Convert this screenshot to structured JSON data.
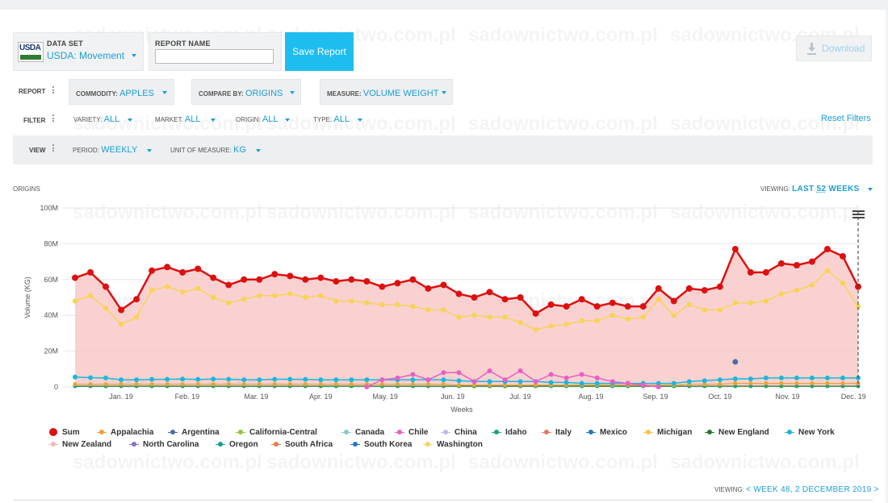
{
  "dataset": {
    "label": "DATA SET",
    "value": "USDA: Movement",
    "logo_text": "USDA"
  },
  "report_name": {
    "label": "REPORT NAME",
    "value": ""
  },
  "save_label": "Save Report",
  "download_label": "Download",
  "report_row": {
    "label": "REPORT",
    "commodity": {
      "label": "COMMODITY:",
      "value": "Apples"
    },
    "compare_by": {
      "label": "COMPARE BY:",
      "value": "Origins"
    },
    "measure": {
      "label": "MEASURE:",
      "value": "Volume Weight"
    }
  },
  "filter_row": {
    "label": "FILTER",
    "variety": {
      "label": "VARIETY:",
      "value": "All"
    },
    "market": {
      "label": "MARKET:",
      "value": "All"
    },
    "origin": {
      "label": "ORIGIN:",
      "value": "All"
    },
    "type": {
      "label": "TYPE:",
      "value": "All"
    },
    "reset_label": "Reset Filters"
  },
  "view_row": {
    "label": "VIEW",
    "period": {
      "label": "PERIOD:",
      "value": "Weekly"
    },
    "unit": {
      "label": "UNIT OF MEASURE:",
      "value": "KG"
    }
  },
  "chart_header": {
    "section_label": "ORIGINS",
    "viewing_label": "VIEWING:",
    "viewing_value_prefix": "LAST",
    "viewing_value_num": "52",
    "viewing_value_suffix": "WEEKS"
  },
  "watermark": "sadownictwo.com.pl",
  "footer": {
    "viewing_label": "VIEWING:",
    "week_value": "< WEEK 48, 2 DECEMBER 2019 >"
  },
  "colors": {
    "accent": "#1a9fd8",
    "save_bg": "#1ebdf0",
    "sum": "#dd1010",
    "sum_fill": "#f9c9c9",
    "washington": "#f7d358"
  },
  "chart_data": {
    "type": "area",
    "xlabel": "Weeks",
    "ylabel": "Volume (KG)",
    "ylim": [
      0,
      100000000
    ],
    "yticks": [
      0,
      20000000,
      40000000,
      60000000,
      80000000,
      100000000
    ],
    "ytick_labels": [
      "0",
      "20M",
      "40M",
      "60M",
      "80M",
      "100M"
    ],
    "xtick_labels": [
      "Jan. 19",
      "Feb. 19",
      "Mar. 19",
      "Apr. 19",
      "May. 19",
      "Jun. 19",
      "Jul. 19",
      "Aug. 19",
      "Sep. 19",
      "Oct. 19",
      "Nov. 19",
      "Dec. 19"
    ],
    "xtick_week_index": [
      3,
      7.3,
      11.8,
      16,
      20.2,
      24.6,
      29,
      33.6,
      37.8,
      42,
      46.4,
      50.7
    ],
    "grid": true,
    "legend_position": "bottom",
    "series": [
      {
        "name": "Sum",
        "color": "#dd1010",
        "values": [
          61,
          64,
          56,
          43,
          49,
          65,
          67,
          64,
          66,
          61,
          57,
          60,
          60,
          63,
          62,
          60,
          61,
          59,
          60,
          59,
          56,
          58,
          60,
          55,
          57,
          52,
          50,
          53,
          49,
          50,
          41,
          46,
          45,
          49,
          45,
          47,
          45,
          45,
          55,
          48,
          55,
          54,
          56,
          77,
          64,
          64,
          69,
          68,
          70,
          77,
          73,
          56
        ]
      },
      {
        "name": "Appalachia",
        "color": "#f0a030",
        "values": [
          1.5,
          1.5,
          1.5,
          1.5,
          1.5,
          1.5,
          1.5,
          1.5,
          1.5,
          1.5,
          1.5,
          1.5,
          1.5,
          1.5,
          1.5,
          1.5,
          1.5,
          1.5,
          1.5,
          1.5,
          1.5,
          1.5,
          1.5,
          1.5,
          1.5,
          1.0,
          1.0,
          1.0,
          1.0,
          1.0,
          1.0,
          1.0,
          1.0,
          1.0,
          1.0,
          1.0,
          1.0,
          1.0,
          1.0,
          1.0,
          1.5,
          1.5,
          1.5,
          2.0,
          2.0,
          2.0,
          2.0,
          2.0,
          2.0,
          2.0,
          2.0,
          2.0
        ]
      },
      {
        "name": "Argentina",
        "color": "#4a6fa5",
        "values": [
          0,
          0,
          0,
          0,
          0,
          0,
          0,
          0,
          0,
          0,
          0,
          0,
          0,
          0,
          0,
          0,
          0,
          0,
          0,
          0,
          0,
          0,
          0,
          0,
          0,
          0,
          0,
          0,
          0,
          0,
          0,
          0,
          0,
          0,
          0,
          0,
          0,
          0,
          0,
          0,
          0,
          0,
          0,
          14,
          0,
          0,
          0,
          0,
          0,
          0,
          0,
          0
        ]
      },
      {
        "name": "California-Central",
        "color": "#8fc740",
        "values": []
      },
      {
        "name": "Canada",
        "color": "#86c8d6",
        "values": []
      },
      {
        "name": "Chile",
        "color": "#e85fc5",
        "values": [
          0,
          0,
          0,
          0,
          0,
          0,
          0,
          0,
          0,
          0,
          0,
          0,
          0,
          0,
          0,
          0,
          0,
          0,
          0,
          0,
          4,
          5,
          7,
          4,
          8,
          8,
          3,
          9,
          4,
          9,
          3,
          7,
          5,
          7,
          5,
          3,
          2,
          1,
          0,
          0,
          0,
          0,
          0,
          0,
          0,
          0,
          0,
          0,
          0,
          0,
          0,
          0
        ]
      },
      {
        "name": "China",
        "color": "#c5b6ec",
        "values": []
      },
      {
        "name": "Idaho",
        "color": "#1aa37a",
        "values": []
      },
      {
        "name": "Italy",
        "color": "#e9765a",
        "values": []
      },
      {
        "name": "Mexico",
        "color": "#1f78c1",
        "values": []
      },
      {
        "name": "Michigan",
        "color": "#f4c542",
        "values": []
      },
      {
        "name": "New England",
        "color": "#1e7a28",
        "values": []
      },
      {
        "name": "New York",
        "color": "#19b8d8",
        "values": [
          5.5,
          5.2,
          5,
          4,
          4,
          4.2,
          4.3,
          4.4,
          4.2,
          4.4,
          4.3,
          4,
          4,
          4.3,
          4.3,
          4.2,
          4,
          4,
          4,
          4,
          4,
          4,
          4,
          4,
          4,
          3.5,
          3,
          3,
          3,
          3,
          3,
          2.5,
          2.5,
          2,
          2,
          2,
          2,
          2,
          2,
          2,
          3,
          3.5,
          4,
          4.5,
          4.5,
          5,
          5,
          5,
          5,
          5,
          5,
          5
        ]
      },
      {
        "name": "New Zealand",
        "color": "#f4b6b6",
        "values": []
      },
      {
        "name": "North Carolina",
        "color": "#8a6fd8",
        "values": []
      },
      {
        "name": "Oregon",
        "color": "#14a08c",
        "values": []
      },
      {
        "name": "South Africa",
        "color": "#ee7a4a",
        "values": []
      },
      {
        "name": "South Korea",
        "color": "#2277cc",
        "values": []
      },
      {
        "name": "Washington",
        "color": "#f7d358",
        "values": [
          48,
          51,
          44,
          35,
          39,
          54,
          56,
          53,
          55,
          50,
          47,
          49,
          51,
          51,
          52,
          50,
          51,
          48,
          48,
          47,
          46,
          46,
          45,
          43,
          43,
          39,
          40,
          39,
          39,
          36,
          32,
          34,
          35,
          37,
          37,
          40,
          38,
          39,
          49,
          40,
          46,
          43,
          43,
          47,
          47,
          48,
          52,
          54,
          57,
          65,
          58,
          45
        ]
      }
    ]
  }
}
